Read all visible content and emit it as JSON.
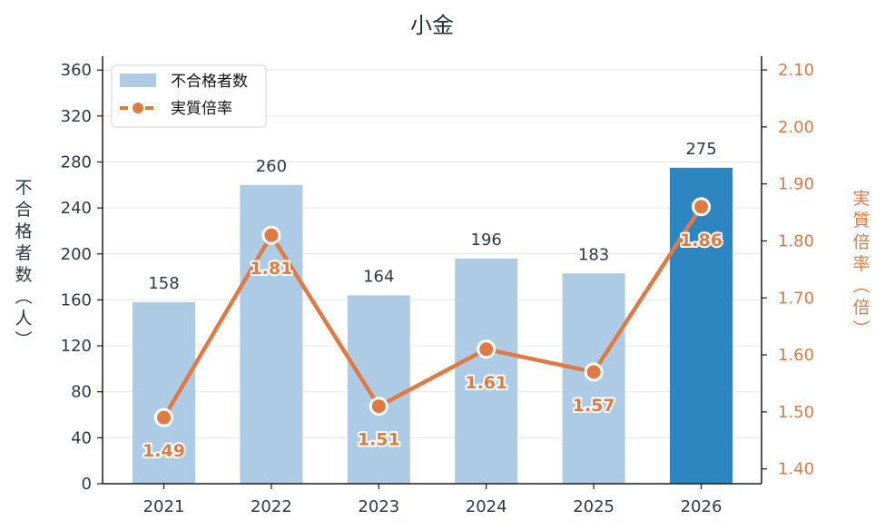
{
  "chart_data": {
    "type": "bar",
    "title": "小金",
    "categories": [
      "2021",
      "2022",
      "2023",
      "2024",
      "2025",
      "2026"
    ],
    "series": [
      {
        "name": "不合格者数",
        "type": "bar",
        "axis": "left",
        "values": [
          158,
          260,
          164,
          196,
          183,
          275
        ],
        "color": "#aecbe6",
        "highlight_color": "#2e86c1",
        "highlight_index": 5
      },
      {
        "name": "実質倍率",
        "type": "line",
        "axis": "right",
        "values": [
          1.49,
          1.81,
          1.51,
          1.61,
          1.57,
          1.86
        ],
        "labels": [
          "1.49",
          "1.81",
          "1.51",
          "1.61",
          "1.57",
          "1.86"
        ],
        "color": "#e07a44"
      }
    ],
    "ylabel": "不合格者数（人）",
    "ylabel_right": "実質倍率（倍）",
    "ylim": [
      0,
      372
    ],
    "yticks": [
      0,
      40,
      80,
      120,
      160,
      200,
      240,
      280,
      320,
      360
    ],
    "ylim_right": [
      1.374,
      2.124
    ],
    "yticks_right": [
      "1.40",
      "1.50",
      "1.60",
      "1.70",
      "1.80",
      "1.90",
      "2.00",
      "2.10"
    ],
    "grid": true,
    "legend_position": "top-left"
  }
}
